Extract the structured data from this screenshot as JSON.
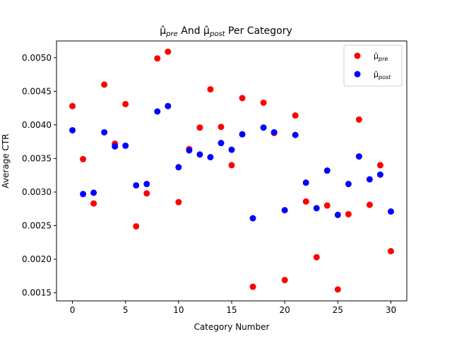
{
  "chart_data": {
    "type": "scatter",
    "title": "μ̂pre And μ̂post Per Category",
    "title_parts": [
      "μ̂",
      "pre",
      " And ",
      "μ̂",
      "post",
      " Per Category"
    ],
    "xlabel": "Category Number",
    "ylabel": "Average CTR",
    "xlim": [
      -1.5,
      31.5
    ],
    "ylim": [
      0.00138,
      0.00525
    ],
    "xticks": [
      0,
      5,
      10,
      15,
      20,
      25,
      30
    ],
    "xtick_labels": [
      "0",
      "5",
      "10",
      "15",
      "20",
      "25",
      "30"
    ],
    "yticks": [
      0.0015,
      0.002,
      0.0025,
      0.003,
      0.0035,
      0.004,
      0.0045,
      0.005
    ],
    "ytick_labels": [
      "0.0015",
      "0.0020",
      "0.0025",
      "0.0030",
      "0.0035",
      "0.0040",
      "0.0045",
      "0.0050"
    ],
    "grid": false,
    "legend_position": "top-right",
    "x": [
      0,
      1,
      2,
      3,
      4,
      5,
      6,
      7,
      8,
      9,
      10,
      11,
      12,
      13,
      14,
      15,
      16,
      17,
      18,
      19,
      20,
      21,
      22,
      23,
      24,
      25,
      26,
      27,
      28,
      29,
      30
    ],
    "series": [
      {
        "name": "μ̂pre",
        "label_base": "μ̂",
        "label_sub": "pre",
        "color": "#ff0000",
        "values": [
          0.00428,
          0.00349,
          0.00283,
          0.0046,
          0.00372,
          0.00431,
          0.00249,
          0.00298,
          0.00499,
          0.00509,
          0.00285,
          0.00364,
          0.00396,
          0.00453,
          0.00397,
          0.0034,
          0.0044,
          0.00159,
          0.00433,
          0.00388,
          0.00169,
          0.00414,
          0.00286,
          0.00203,
          0.0028,
          0.00155,
          0.00267,
          0.00408,
          0.00281,
          0.0034,
          0.00212
        ]
      },
      {
        "name": "μ̂post",
        "label_base": "μ̂",
        "label_sub": "post",
        "color": "#0000ff",
        "values": [
          0.00392,
          0.00297,
          0.00299,
          0.00389,
          0.00368,
          0.00369,
          0.0031,
          0.00312,
          0.0042,
          0.00428,
          0.00337,
          0.00362,
          0.00356,
          0.00352,
          0.00373,
          0.00363,
          0.00386,
          0.00261,
          0.00396,
          0.00389,
          0.00273,
          0.00385,
          0.00314,
          0.00276,
          0.00332,
          0.00266,
          0.00312,
          0.00353,
          0.00319,
          0.00326,
          0.00271
        ]
      }
    ]
  }
}
